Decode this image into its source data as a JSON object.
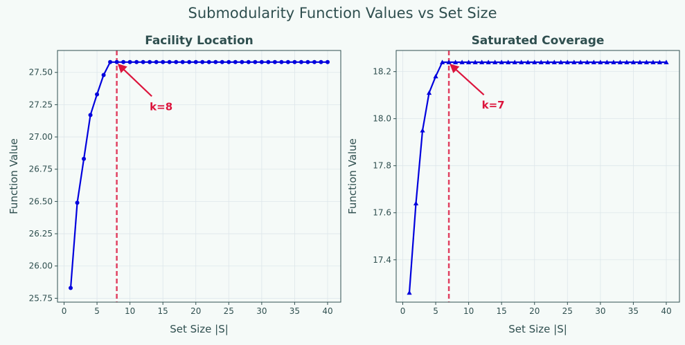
{
  "figure_title": "Submodularity Function Values vs Set Size",
  "colors": {
    "background": "#f5faf8",
    "plot_background": "#f5faf8",
    "title_text": "#2f4f4f",
    "axis_text": "#2f4f4f",
    "grid": "#dde6ea",
    "series_line": "#0000dd",
    "threshold": "#dc143c"
  },
  "chart_data": [
    {
      "type": "line",
      "title": "Facility Location",
      "xlabel": "Set Size |S|",
      "ylabel": "Function Value",
      "marker": "circle",
      "xlim": [
        -1,
        42
      ],
      "ylim": [
        25.72,
        27.67
      ],
      "xticks": [
        0,
        5,
        10,
        15,
        20,
        25,
        30,
        35,
        40
      ],
      "yticks": [
        25.75,
        26.0,
        26.25,
        26.5,
        26.75,
        27.0,
        27.25,
        27.5
      ],
      "ytick_labels": [
        "25.75",
        "26.00",
        "26.25",
        "26.50",
        "26.75",
        "27.00",
        "27.25",
        "27.50"
      ],
      "grid": true,
      "x": [
        1,
        2,
        3,
        4,
        5,
        6,
        7,
        8,
        9,
        10,
        11,
        12,
        13,
        14,
        15,
        16,
        17,
        18,
        19,
        20,
        21,
        22,
        23,
        24,
        25,
        26,
        27,
        28,
        29,
        30,
        31,
        32,
        33,
        34,
        35,
        36,
        37,
        38,
        39,
        40
      ],
      "values": [
        25.83,
        26.49,
        26.83,
        27.17,
        27.33,
        27.48,
        27.58,
        27.58,
        27.58,
        27.58,
        27.58,
        27.58,
        27.58,
        27.58,
        27.58,
        27.58,
        27.58,
        27.58,
        27.58,
        27.58,
        27.58,
        27.58,
        27.58,
        27.58,
        27.58,
        27.58,
        27.58,
        27.58,
        27.58,
        27.58,
        27.58,
        27.58,
        27.58,
        27.58,
        27.58,
        27.58,
        27.58,
        27.58,
        27.58,
        27.58
      ],
      "threshold_x": 8,
      "annotation": {
        "text": "k=8",
        "point": [
          8,
          27.58
        ],
        "text_pos": [
          13,
          27.24
        ]
      }
    },
    {
      "type": "line",
      "title": "Saturated Coverage",
      "xlabel": "Set Size |S|",
      "ylabel": "Function Value",
      "marker": "triangle",
      "xlim": [
        -1,
        42
      ],
      "ylim": [
        17.22,
        18.29
      ],
      "xticks": [
        0,
        5,
        10,
        15,
        20,
        25,
        30,
        35,
        40
      ],
      "yticks": [
        17.4,
        17.6,
        17.8,
        18.0,
        18.2
      ],
      "ytick_labels": [
        "17.4",
        "17.6",
        "17.8",
        "18.0",
        "18.2"
      ],
      "grid": true,
      "x": [
        1,
        2,
        3,
        4,
        5,
        6,
        7,
        8,
        9,
        10,
        11,
        12,
        13,
        14,
        15,
        16,
        17,
        18,
        19,
        20,
        21,
        22,
        23,
        24,
        25,
        26,
        27,
        28,
        29,
        30,
        31,
        32,
        33,
        34,
        35,
        36,
        37,
        38,
        39,
        40
      ],
      "values": [
        17.26,
        17.64,
        17.95,
        18.11,
        18.18,
        18.24,
        18.24,
        18.24,
        18.24,
        18.24,
        18.24,
        18.24,
        18.24,
        18.24,
        18.24,
        18.24,
        18.24,
        18.24,
        18.24,
        18.24,
        18.24,
        18.24,
        18.24,
        18.24,
        18.24,
        18.24,
        18.24,
        18.24,
        18.24,
        18.24,
        18.24,
        18.24,
        18.24,
        18.24,
        18.24,
        18.24,
        18.24,
        18.24,
        18.24,
        18.24
      ],
      "threshold_x": 7,
      "annotation": {
        "text": "k=7",
        "point": [
          7,
          18.24
        ],
        "text_pos": [
          12,
          18.06
        ]
      }
    }
  ]
}
